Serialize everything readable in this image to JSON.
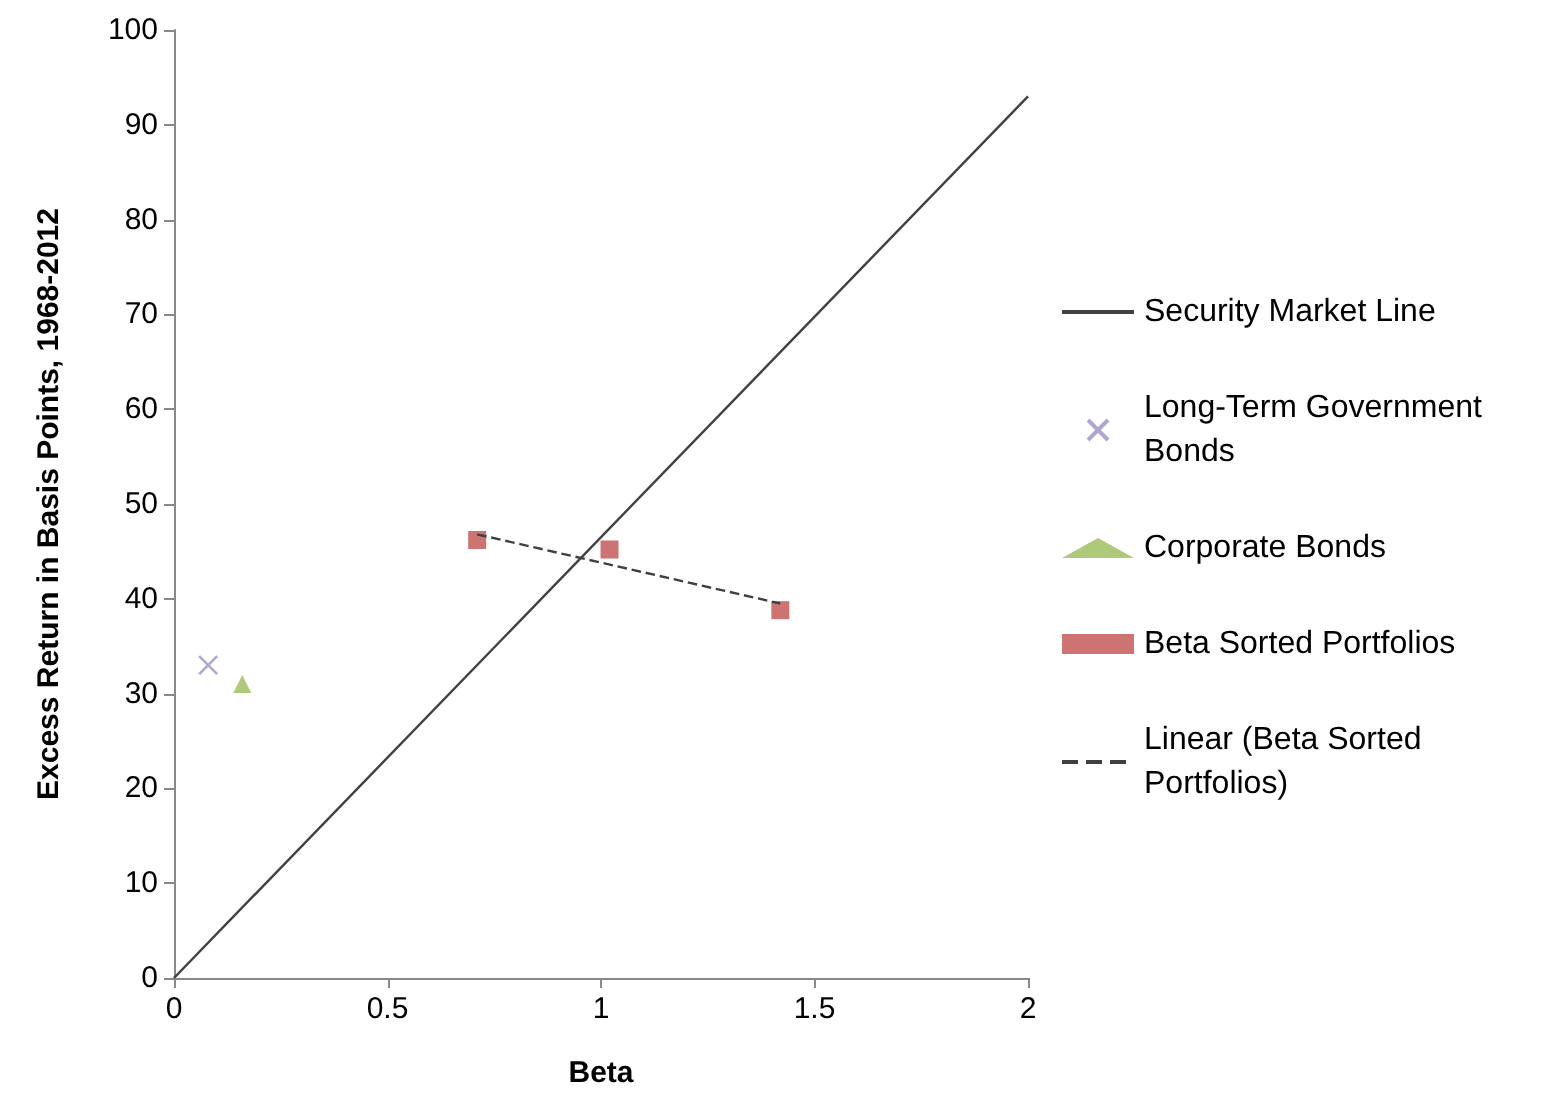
{
  "chart_data": {
    "type": "scatter",
    "xlabel": "Beta",
    "ylabel": "Excess Return in Basis Points, 1968-2012",
    "xlim": [
      0,
      2
    ],
    "xticks": [
      0,
      0.5,
      1,
      1.5,
      2
    ],
    "ylim": [
      0,
      100
    ],
    "yticks": [
      0,
      10,
      20,
      30,
      40,
      50,
      60,
      70,
      80,
      90,
      100
    ],
    "grid": false,
    "legend": "right",
    "series": [
      {
        "name": "Security Market Line",
        "type": "line",
        "color": "#404040",
        "marker": "none",
        "line_style": "solid",
        "x": [
          0,
          2
        ],
        "values": [
          0,
          93
        ]
      },
      {
        "name": "Long-Term Government Bonds",
        "color": "#9d8fc8",
        "marker": "cross",
        "x": [
          0.08
        ],
        "values": [
          33
        ]
      },
      {
        "name": "Corporate Bonds",
        "color": "#9bbb59",
        "marker": "triangle",
        "x": [
          0.16
        ],
        "values": [
          31
        ]
      },
      {
        "name": "Beta Sorted Portfolios",
        "color": "#c0504d",
        "marker": "square",
        "x": [
          0.71,
          1.02,
          1.42
        ],
        "values": [
          46.2,
          45.2,
          38.8
        ]
      },
      {
        "name": "Linear (Beta Sorted Portfolios)",
        "type": "line",
        "color": "#404040",
        "marker": "none",
        "line_style": "dashed",
        "x": [
          0.71,
          1.42
        ],
        "values": [
          46.8,
          39.5
        ]
      }
    ]
  }
}
